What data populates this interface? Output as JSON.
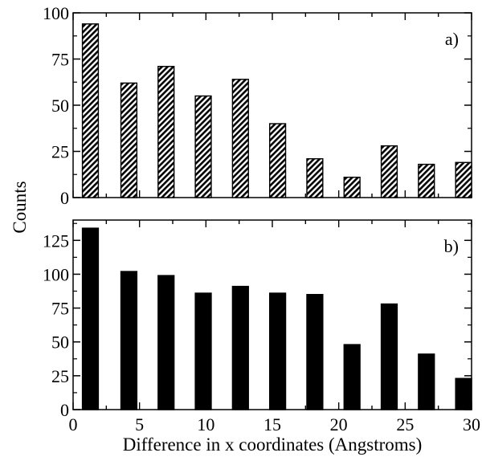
{
  "chart_data": {
    "type": "bar",
    "shared_ylabel": "Counts",
    "xlabel": "Difference in x coordinates (Angstroms)",
    "xlim": [
      0,
      30
    ],
    "xticks": [
      "0",
      "5",
      "10",
      "15",
      "20",
      "25",
      "30"
    ],
    "panels": [
      {
        "label": "a)",
        "pattern": "hatched",
        "ylim": [
          0,
          100
        ],
        "yticks": [
          "0",
          "25",
          "50",
          "75",
          "100"
        ],
        "x": [
          1.3,
          4.2,
          7.0,
          9.8,
          12.6,
          15.4,
          18.2,
          21.0,
          23.8,
          26.6,
          29.4
        ],
        "values": [
          94,
          62,
          71,
          55,
          64,
          40,
          21,
          11,
          28,
          18,
          19
        ]
      },
      {
        "label": "b)",
        "pattern": "solid",
        "ylim": [
          0,
          140
        ],
        "yticks": [
          "0",
          "25",
          "50",
          "75",
          "100",
          "125"
        ],
        "x": [
          1.3,
          4.2,
          7.0,
          9.8,
          12.6,
          15.4,
          18.2,
          21.0,
          23.8,
          26.6,
          29.4
        ],
        "values": [
          134,
          102,
          99,
          86,
          91,
          86,
          85,
          48,
          78,
          41,
          23
        ]
      }
    ]
  }
}
